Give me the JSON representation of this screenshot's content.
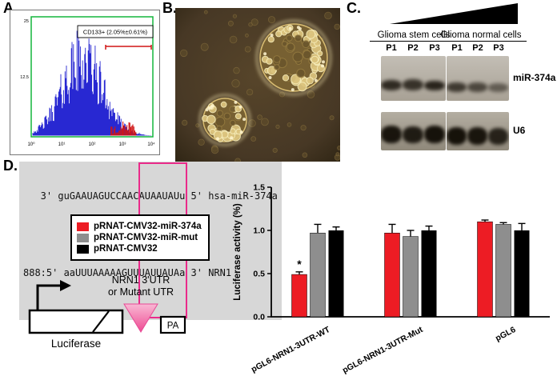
{
  "panel_a": {
    "label": "A.",
    "gate_annotation": "CD133+ (2.05%±0.61%)",
    "y_ticks": [
      "25",
      "12.5"
    ],
    "x_ticks": [
      "10⁰",
      "10¹",
      "10²",
      "10³",
      "10⁴"
    ],
    "frame_color": "#14b53c",
    "trace_color": "#1c1cd0",
    "gate_color": "#d01515"
  },
  "panel_b": {
    "label": "B."
  },
  "panel_c": {
    "label": "C.",
    "group_labels": [
      "Glioma stem cells",
      "Glioma normal cells"
    ],
    "lanes": [
      "P1",
      "P2",
      "P3"
    ],
    "blot_labels": [
      "miR-374a",
      "U6"
    ]
  },
  "panel_d": {
    "label": "D.",
    "alignment": {
      "line_mirna": "   3' guGAAUAGUCCAACAUAAUAUu 5' hsa-miR-374a",
      "line_match": "        :  |||  |   |||||||",
      "line_target": "888:5' aaUUUAAAAAGUUUAUUAUAa 3' NRN1"
    },
    "seed_box_color": "#ea2a8a",
    "legend": {
      "items": [
        {
          "label": "pRNAT-CMV32-miR-374a",
          "color": "#ed1c24"
        },
        {
          "label": "pRNAT-CMV32-miR-mut",
          "color": "#8e8e8e"
        },
        {
          "label": "pRNAT-CMV32",
          "color": "#000000"
        }
      ]
    },
    "construct": {
      "utr_line1": "NRN1 3'UTR",
      "utr_line2": "or Mutant UTR",
      "gene_label": "Luciferase",
      "pa_label": "PA",
      "utr_color": "#f06daa"
    }
  },
  "chart_data": {
    "type": "bar",
    "title": "",
    "ylabel": "Luciferase activity (%)",
    "xlabel": "",
    "ylim": [
      0,
      1.5
    ],
    "yticks": [
      0,
      0.5,
      1,
      1.5
    ],
    "grid": false,
    "legend_position": "external-left-panel",
    "categories": [
      "pGL6-NRN1-3UTR-WT",
      "pGL6-NRN1-3UTR-Mut",
      "pGL6"
    ],
    "series": [
      {
        "name": "pRNAT-CMV32-miR-374a",
        "color": "#ed1c24",
        "values": [
          0.49,
          0.97,
          1.1
        ],
        "errors": [
          0.03,
          0.1,
          0.02
        ]
      },
      {
        "name": "pRNAT-CMV32-miR-mut",
        "color": "#8e8e8e",
        "values": [
          0.97,
          0.93,
          1.07
        ],
        "errors": [
          0.1,
          0.07,
          0.02
        ]
      },
      {
        "name": "pRNAT-CMV32",
        "color": "#000000",
        "values": [
          1.0,
          1.0,
          1.0
        ],
        "errors": [
          0.04,
          0.05,
          0.08
        ]
      }
    ],
    "significance": [
      {
        "text": "*",
        "category_index": 0,
        "series_index": 0
      }
    ]
  }
}
